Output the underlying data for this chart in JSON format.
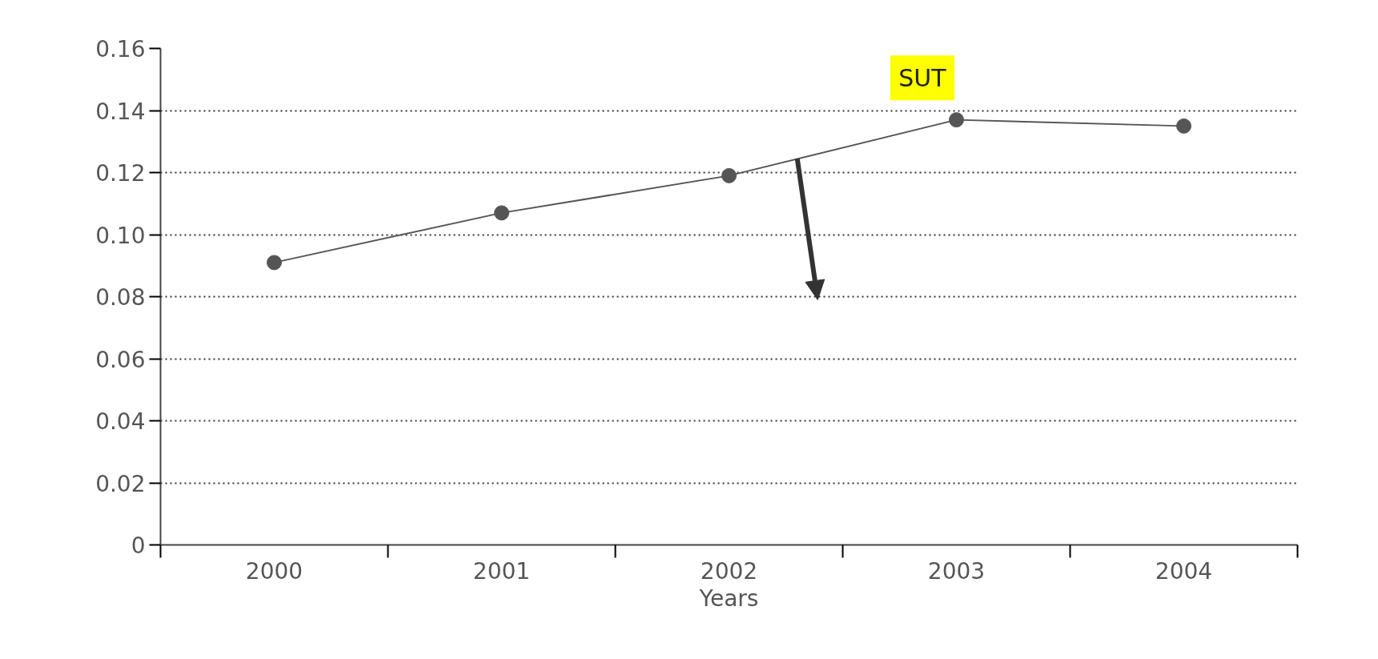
{
  "chart_data": {
    "type": "line",
    "xlabel": "Years",
    "categories": [
      "2000",
      "2001",
      "2002",
      "2003",
      "2004"
    ],
    "series": [
      {
        "color": "#555555",
        "values": [
          0.091,
          0.107,
          0.119,
          0.137,
          0.135
        ]
      }
    ],
    "ylim": [
      0,
      0.16
    ],
    "yticks": [
      {
        "value": 0,
        "label": "0"
      },
      0.02,
      0.04,
      0.06,
      0.08,
      {
        "value": 0.1,
        "label": "0.10"
      },
      0.12,
      0.14,
      0.16
    ],
    "grid": "y",
    "marker": "circle",
    "line_style": "solid",
    "annotations": [
      "SUT"
    ]
  }
}
